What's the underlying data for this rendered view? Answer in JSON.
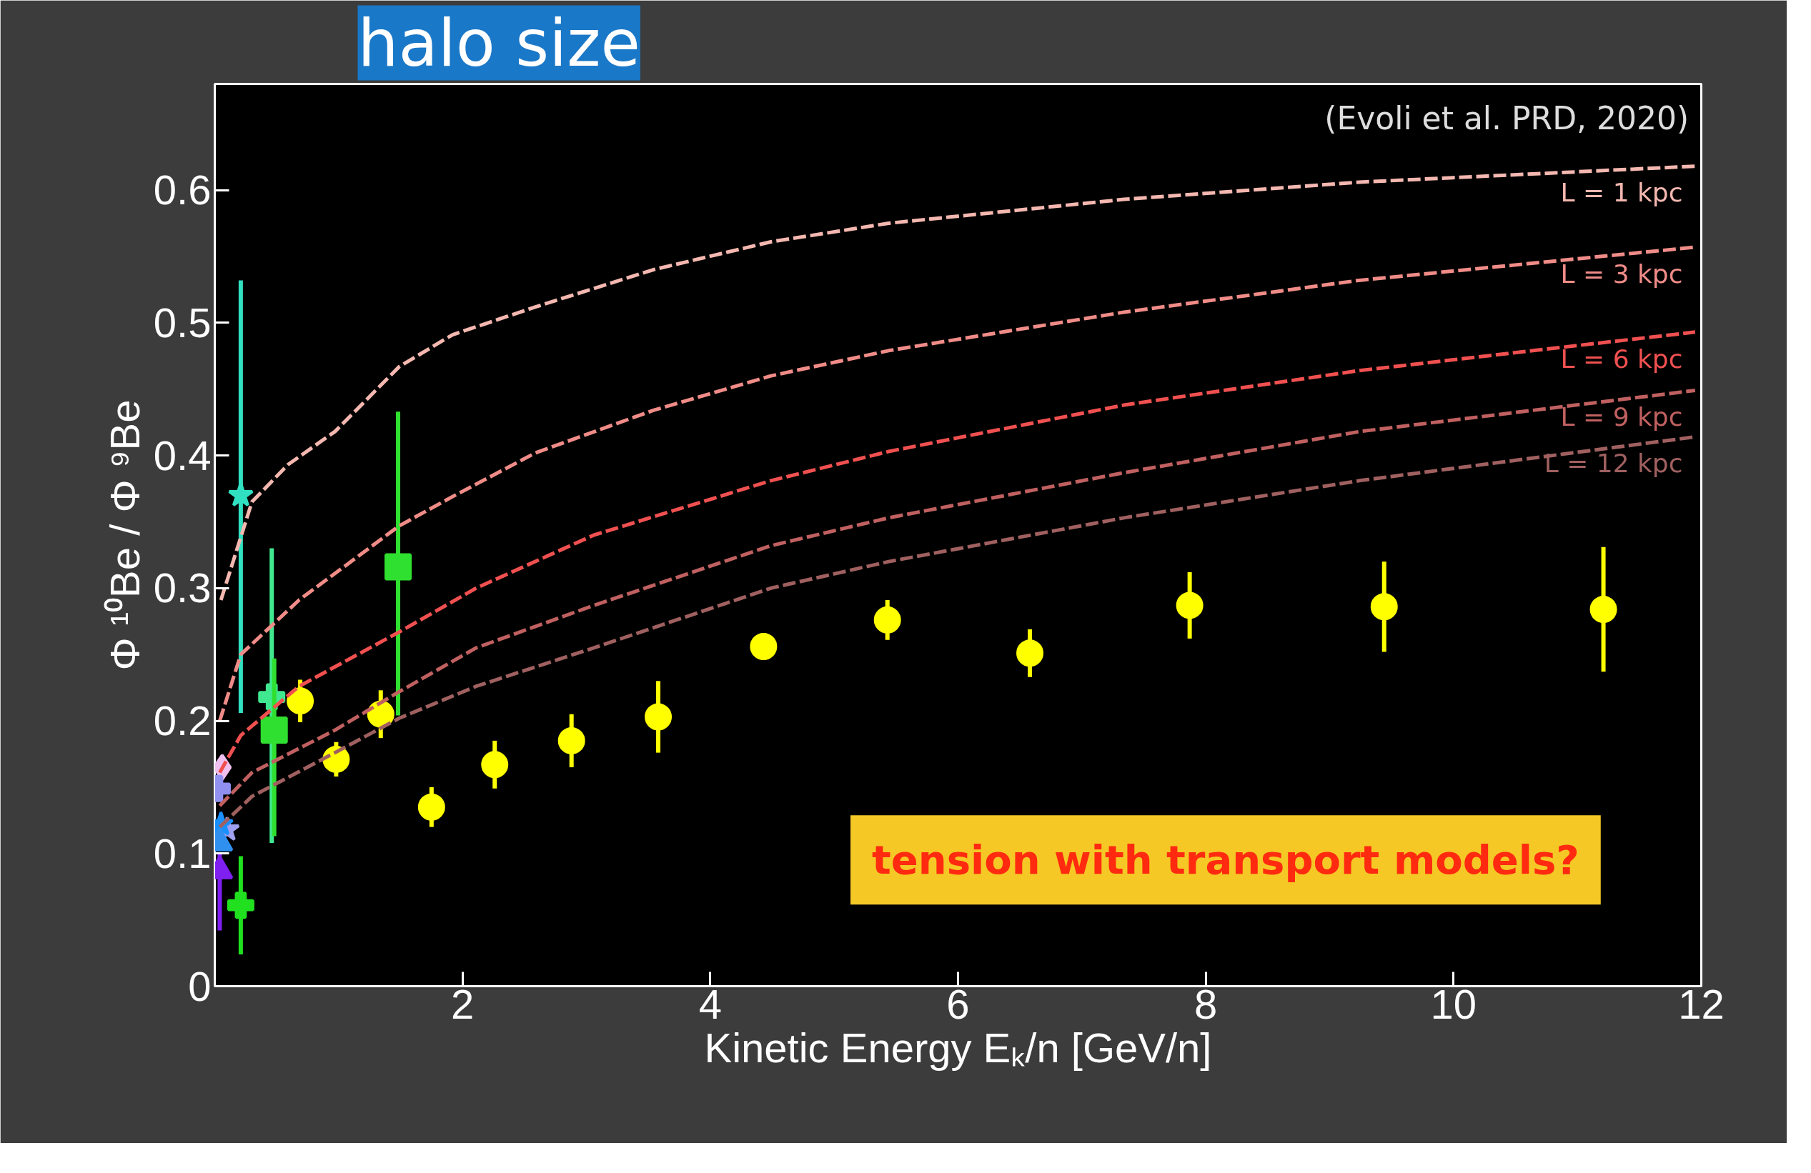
{
  "chart_data": {
    "type": "line",
    "title": "halo size",
    "xlabel": "Kinetic Energy Eₖ/n [GeV/n]",
    "ylabel": "Φ ¹⁰Be / Φ ⁹Be",
    "annotations": [
      "(Evoli et al. PRD, 2020)",
      "tension with transport models?"
    ],
    "xlim": [
      0,
      12
    ],
    "ylim": [
      0,
      0.68
    ],
    "xticks": [
      2,
      4,
      6,
      8,
      10,
      12
    ],
    "yticks": [
      0,
      0.1,
      0.2,
      0.3,
      0.4,
      0.5,
      0.6
    ],
    "series": [
      {
        "name": "L = 1 kpc",
        "line_style": "dashed",
        "color": "#f4b8b0",
        "x": [
          0.05,
          0.3,
          0.59,
          0.97,
          1.49,
          1.92,
          2.59,
          3.54,
          4.49,
          5.44,
          7.34,
          9.24,
          11.95
        ],
        "values": [
          0.291,
          0.365,
          0.393,
          0.418,
          0.467,
          0.491,
          0.512,
          0.54,
          0.561,
          0.575,
          0.593,
          0.606,
          0.618
        ]
      },
      {
        "name": "L = 3 kpc",
        "line_style": "dashed",
        "color": "#f08c88",
        "x": [
          0.04,
          0.21,
          0.68,
          1.49,
          1.92,
          2.59,
          3.54,
          4.49,
          5.44,
          7.34,
          9.24,
          11.95
        ],
        "values": [
          0.2,
          0.25,
          0.291,
          0.347,
          0.369,
          0.402,
          0.434,
          0.46,
          0.479,
          0.508,
          0.532,
          0.557
        ]
      },
      {
        "name": "L = 6 kpc",
        "line_style": "dashed",
        "color": "#f05050",
        "x": [
          0.04,
          0.21,
          0.68,
          1.49,
          2.11,
          3.06,
          4.49,
          5.44,
          7.34,
          9.24,
          11.95
        ],
        "values": [
          0.161,
          0.189,
          0.226,
          0.267,
          0.3,
          0.34,
          0.381,
          0.403,
          0.438,
          0.464,
          0.493
        ]
      },
      {
        "name": "L = 9 kpc",
        "line_style": "dashed",
        "color": "#c06060",
        "x": [
          0.04,
          0.3,
          0.97,
          1.49,
          2.11,
          3.06,
          4.49,
          5.44,
          7.34,
          9.24,
          11.95
        ],
        "values": [
          0.136,
          0.161,
          0.193,
          0.222,
          0.255,
          0.287,
          0.332,
          0.353,
          0.387,
          0.418,
          0.449
        ]
      },
      {
        "name": "L = 12 kpc",
        "line_style": "dashed",
        "color": "#a06060",
        "x": [
          0.04,
          0.3,
          0.97,
          1.49,
          2.11,
          3.06,
          4.49,
          5.44,
          7.34,
          9.24,
          11.95
        ],
        "values": [
          0.12,
          0.143,
          0.176,
          0.202,
          0.226,
          0.255,
          0.3,
          0.32,
          0.353,
          0.381,
          0.414
        ]
      },
      {
        "type": "scatter",
        "marker": "circle",
        "color": "#ffff00",
        "x": [
          0.69,
          0.98,
          1.34,
          1.75,
          2.26,
          2.88,
          3.58,
          4.43,
          5.43,
          6.58,
          7.87,
          9.44,
          11.21
        ],
        "values": [
          0.215,
          0.171,
          0.205,
          0.135,
          0.167,
          0.185,
          0.203,
          0.256,
          0.276,
          0.251,
          0.287,
          0.286,
          0.284
        ],
        "errors": [
          0.016,
          0.013,
          0.018,
          0.015,
          0.018,
          0.02,
          0.027,
          0.01,
          0.015,
          0.018,
          0.025,
          0.034,
          0.047
        ]
      },
      {
        "type": "scatter",
        "marker": "star",
        "color": "#30e0c0",
        "x": [
          0.21
        ],
        "values": [
          0.37
        ],
        "errors": [
          [
            0.206,
            0.532
          ]
        ]
      },
      {
        "type": "scatter",
        "marker": "cross",
        "color": "#40e890",
        "x": [
          0.46
        ],
        "values": [
          0.218
        ],
        "errors": [
          [
            0.108,
            0.33
          ]
        ]
      },
      {
        "type": "scatter",
        "marker": "square",
        "color": "#30e030",
        "x": [
          0.48,
          1.48
        ],
        "values": [
          0.193,
          0.316
        ],
        "errors": [
          [
            0.113,
            0.247
          ],
          [
            0.204,
            0.433
          ]
        ]
      },
      {
        "type": "scatter",
        "marker": "cross",
        "color": "#20e020",
        "x": [
          0.21
        ],
        "values": [
          0.061
        ],
        "errors": [
          [
            0.024,
            0.098
          ]
        ]
      },
      {
        "type": "scatter",
        "marker": "diamond",
        "color": "#f0c0f0",
        "x": [
          0.06
        ],
        "values": [
          0.165
        ]
      },
      {
        "type": "scatter",
        "marker": "cross",
        "color": "#9090f0",
        "x": [
          0.02
        ],
        "values": [
          0.149
        ]
      },
      {
        "type": "scatter",
        "marker": "star",
        "color": "#a0a0f0",
        "x": [
          0.1
        ],
        "values": [
          0.118
        ]
      },
      {
        "type": "scatter",
        "marker": "triangle",
        "color": "#8020f0",
        "x": [
          0.04
        ],
        "values": [
          0.087
        ],
        "errors": [
          [
            0.042,
            0.1
          ]
        ]
      },
      {
        "type": "scatter",
        "marker": "star",
        "color": "#1a90ff",
        "x": [
          0.05
        ],
        "values": [
          0.122
        ]
      },
      {
        "type": "scatter",
        "marker": "triangle",
        "color": "#3090f0",
        "x": [
          0.04
        ],
        "values": [
          0.108
        ]
      }
    ]
  }
}
